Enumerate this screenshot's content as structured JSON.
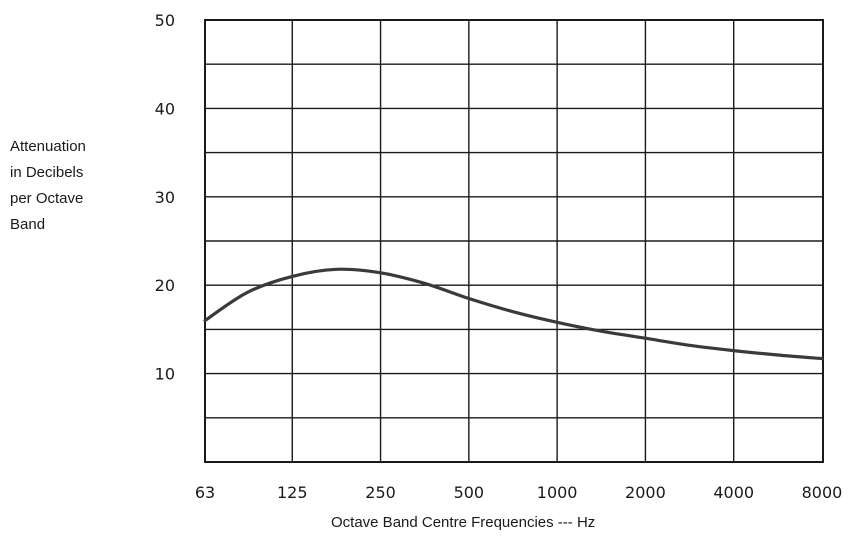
{
  "chart_data": {
    "type": "line",
    "title": "",
    "ylabel_lines": [
      "Attenuation",
      "in Decibels",
      "per Octave",
      "Band"
    ],
    "xlabel": "Octave Band Centre Frequencies  ---  Hz",
    "x_scale": "log2 (octave bands)",
    "categories": [
      "63",
      "125",
      "250",
      "500",
      "1000",
      "2000",
      "4000",
      "8000"
    ],
    "y_ticks": [
      "10",
      "20",
      "30",
      "40",
      "50"
    ],
    "ylim": [
      0,
      50
    ],
    "grid": true,
    "series": [
      {
        "x": [
          63,
          88,
          125,
          177,
          250,
          354,
          500,
          707,
          1000,
          1414,
          2000,
          2828,
          4000,
          5657,
          8000
        ],
        "values": [
          16.0,
          19.2,
          21.0,
          21.8,
          21.4,
          20.2,
          18.5,
          17.0,
          15.8,
          14.8,
          14.0,
          13.2,
          12.6,
          12.1,
          11.7
        ]
      }
    ],
    "colors": {
      "line": "#3a3a3a",
      "grid": "#1a1a1a"
    }
  }
}
